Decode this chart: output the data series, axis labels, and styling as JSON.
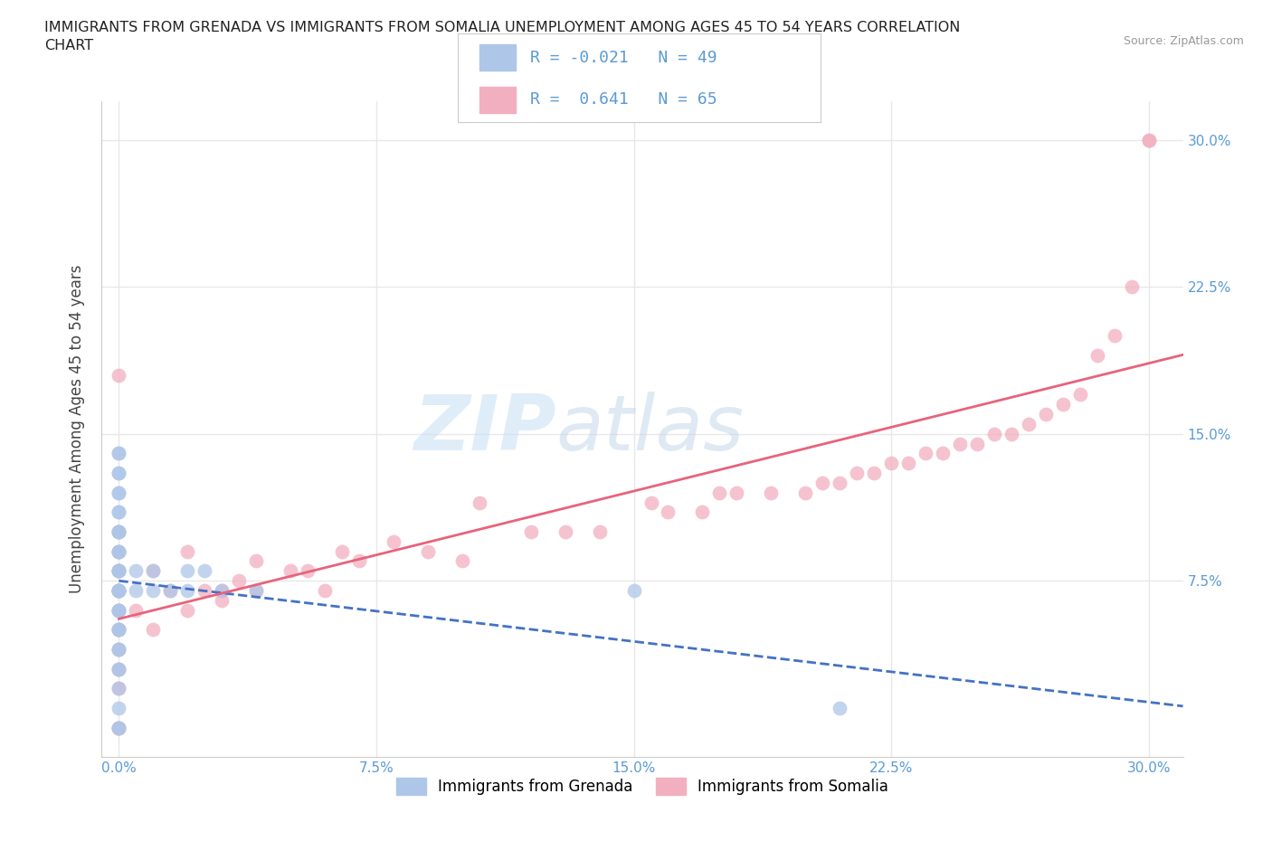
{
  "title": "IMMIGRANTS FROM GRENADA VS IMMIGRANTS FROM SOMALIA UNEMPLOYMENT AMONG AGES 45 TO 54 YEARS CORRELATION\nCHART",
  "source_text": "Source: ZipAtlas.com",
  "ylabel": "Unemployment Among Ages 45 to 54 years",
  "xlim": [
    -0.005,
    0.31
  ],
  "ylim": [
    -0.015,
    0.32
  ],
  "xticks": [
    0.0,
    0.075,
    0.15,
    0.225,
    0.3
  ],
  "xticklabels": [
    "0.0%",
    "7.5%",
    "15.0%",
    "22.5%",
    "30.0%"
  ],
  "ytick_vals": [
    0.075,
    0.15,
    0.225,
    0.3
  ],
  "yticklabels": [
    "7.5%",
    "15.0%",
    "22.5%",
    "30.0%"
  ],
  "watermark_part1": "ZIP",
  "watermark_part2": "atlas",
  "grenada_color": "#aec6e8",
  "somalia_color": "#f2afc0",
  "grenada_R": -0.021,
  "grenada_N": 49,
  "somalia_R": 0.641,
  "somalia_N": 65,
  "legend_label_grenada": "Immigrants from Grenada",
  "legend_label_somalia": "Immigrants from Somalia",
  "grenada_line_color": "#4472c4",
  "somalia_line_color": "#e8637c",
  "grid_color": "#e8e8e8",
  "axis_color": "#cccccc",
  "tick_color": "#5b9bd5",
  "grenada_x": [
    0.0,
    0.0,
    0.0,
    0.0,
    0.0,
    0.0,
    0.0,
    0.0,
    0.0,
    0.0,
    0.0,
    0.0,
    0.0,
    0.0,
    0.0,
    0.0,
    0.0,
    0.0,
    0.0,
    0.0,
    0.0,
    0.0,
    0.0,
    0.0,
    0.0,
    0.0,
    0.0,
    0.0,
    0.0,
    0.0,
    0.0,
    0.0,
    0.0,
    0.0,
    0.0,
    0.0,
    0.0,
    0.005,
    0.005,
    0.01,
    0.01,
    0.015,
    0.02,
    0.02,
    0.025,
    0.03,
    0.04,
    0.15,
    0.21
  ],
  "grenada_y": [
    0.0,
    0.0,
    0.01,
    0.02,
    0.03,
    0.03,
    0.04,
    0.04,
    0.05,
    0.05,
    0.05,
    0.06,
    0.06,
    0.06,
    0.07,
    0.07,
    0.07,
    0.07,
    0.07,
    0.08,
    0.08,
    0.08,
    0.08,
    0.09,
    0.09,
    0.09,
    0.1,
    0.1,
    0.1,
    0.11,
    0.11,
    0.12,
    0.12,
    0.13,
    0.13,
    0.14,
    0.14,
    0.07,
    0.08,
    0.07,
    0.08,
    0.07,
    0.07,
    0.08,
    0.08,
    0.07,
    0.07,
    0.07,
    0.01
  ],
  "somalia_x": [
    0.0,
    0.0,
    0.0,
    0.0,
    0.0,
    0.0,
    0.0,
    0.0,
    0.0,
    0.0,
    0.0,
    0.0,
    0.0,
    0.005,
    0.01,
    0.01,
    0.015,
    0.02,
    0.02,
    0.025,
    0.03,
    0.03,
    0.035,
    0.04,
    0.04,
    0.05,
    0.055,
    0.06,
    0.065,
    0.07,
    0.08,
    0.09,
    0.1,
    0.105,
    0.12,
    0.13,
    0.14,
    0.155,
    0.16,
    0.17,
    0.175,
    0.18,
    0.19,
    0.2,
    0.205,
    0.21,
    0.215,
    0.22,
    0.225,
    0.23,
    0.235,
    0.24,
    0.245,
    0.25,
    0.255,
    0.26,
    0.265,
    0.27,
    0.275,
    0.28,
    0.285,
    0.29,
    0.295,
    0.3,
    0.3
  ],
  "somalia_y": [
    0.0,
    0.0,
    0.02,
    0.03,
    0.04,
    0.05,
    0.06,
    0.07,
    0.07,
    0.08,
    0.09,
    0.1,
    0.18,
    0.06,
    0.05,
    0.08,
    0.07,
    0.06,
    0.09,
    0.07,
    0.065,
    0.07,
    0.075,
    0.07,
    0.085,
    0.08,
    0.08,
    0.07,
    0.09,
    0.085,
    0.095,
    0.09,
    0.085,
    0.115,
    0.1,
    0.1,
    0.1,
    0.115,
    0.11,
    0.11,
    0.12,
    0.12,
    0.12,
    0.12,
    0.125,
    0.125,
    0.13,
    0.13,
    0.135,
    0.135,
    0.14,
    0.14,
    0.145,
    0.145,
    0.15,
    0.15,
    0.155,
    0.16,
    0.165,
    0.17,
    0.19,
    0.2,
    0.225,
    0.3,
    0.3
  ]
}
